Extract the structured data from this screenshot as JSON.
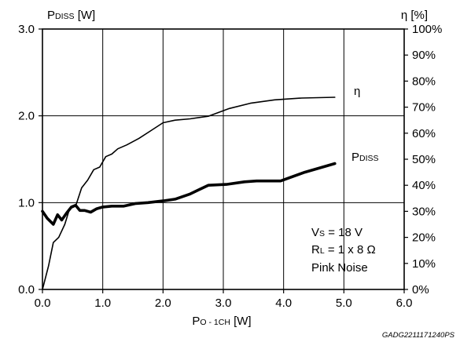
{
  "chart_data": {
    "type": "line",
    "left_axis": {
      "label_main": "P",
      "label_sub": "DISS",
      "label_unit": " [W]",
      "ylim": [
        0,
        3
      ],
      "ticks": [
        "0.0",
        "1.0",
        "2.0",
        "3.0"
      ]
    },
    "right_axis": {
      "label": "η [%]",
      "ylim": [
        0,
        100
      ],
      "ticks": [
        "0%",
        "10%",
        "20%",
        "30%",
        "40%",
        "50%",
        "60%",
        "70%",
        "80%",
        "90%",
        "100%"
      ]
    },
    "x_axis": {
      "label_main": "P",
      "label_sub": "O - 1CH",
      "label_unit": " [W]",
      "xlim": [
        0,
        6
      ],
      "ticks": [
        "0.0",
        "1.0",
        "2.0",
        "3.0",
        "4.0",
        "5.0",
        "6.0"
      ]
    },
    "grid": true,
    "series": [
      {
        "name": "η",
        "axis": "right",
        "x": [
          0.0,
          0.1,
          0.18,
          0.27,
          0.37,
          0.45,
          0.55,
          0.65,
          0.75,
          0.85,
          0.95,
          1.05,
          1.15,
          1.25,
          1.4,
          1.6,
          1.8,
          2.0,
          2.2,
          2.45,
          2.75,
          3.1,
          3.45,
          3.85,
          4.3,
          4.85
        ],
        "y": [
          0,
          9,
          18,
          20,
          25,
          31,
          32,
          39,
          42,
          46,
          47,
          51,
          52,
          54,
          55.5,
          58,
          61,
          64,
          65,
          65.5,
          66.5,
          69.5,
          71.5,
          72.8,
          73.5,
          73.8
        ]
      },
      {
        "name": "P",
        "name_sub": "DISS",
        "axis": "left",
        "x": [
          0.0,
          0.08,
          0.18,
          0.25,
          0.32,
          0.4,
          0.48,
          0.55,
          0.62,
          0.7,
          0.8,
          0.9,
          1.0,
          1.15,
          1.35,
          1.55,
          1.75,
          2.0,
          2.2,
          2.45,
          2.75,
          3.05,
          3.35,
          3.55,
          3.95,
          4.35,
          4.85
        ],
        "y": [
          0.9,
          0.82,
          0.75,
          0.86,
          0.8,
          0.88,
          0.95,
          0.97,
          0.91,
          0.91,
          0.89,
          0.93,
          0.95,
          0.96,
          0.96,
          0.99,
          1.0,
          1.02,
          1.04,
          1.1,
          1.2,
          1.21,
          1.24,
          1.25,
          1.25,
          1.35,
          1.45
        ]
      }
    ],
    "annotations": {
      "vs_main": "V",
      "vs_sub": "S",
      "vs_rest": " = 18 V",
      "rl_main": "R",
      "rl_sub": "L",
      "rl_rest": " = 1 x 8 Ω",
      "noise": "Pink Noise"
    },
    "footer": "GADG2211171240PS"
  }
}
